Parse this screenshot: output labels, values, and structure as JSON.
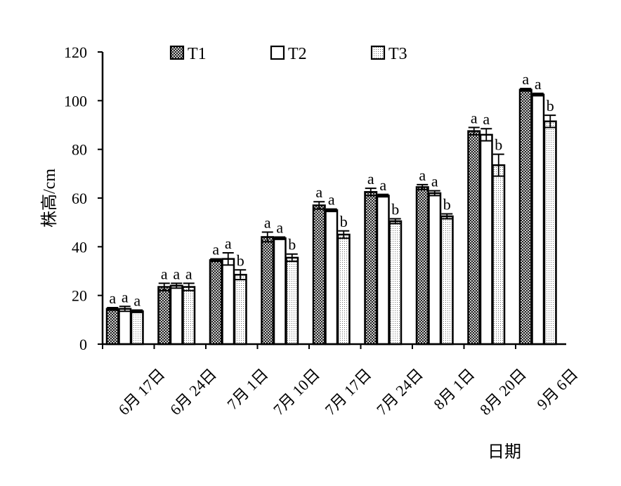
{
  "chart_data": {
    "type": "bar",
    "title": "",
    "xlabel": "日期",
    "ylabel": "株高/cm",
    "ylim": [
      0,
      120
    ],
    "yticks": [
      0,
      20,
      40,
      60,
      80,
      100,
      120
    ],
    "grid": false,
    "legend_position": "top",
    "categories": [
      "6月 17日",
      "6月 24日",
      "7月 1日",
      "7月 10日",
      "7月 17日",
      "7月 24日",
      "8月 1日",
      "8月 20日",
      "9月 6日"
    ],
    "series": [
      {
        "name": "T1",
        "pattern": "diagonal-cross-hatch",
        "values": [
          14.5,
          23.5,
          34.5,
          44,
          57,
          62.5,
          64.5,
          87.5,
          104.5
        ],
        "errors": [
          0.5,
          1.5,
          0.5,
          2,
          1.5,
          1.5,
          1,
          1.5,
          0.5
        ],
        "labels": [
          "a",
          "a",
          "a",
          "a",
          "a",
          "a",
          "a",
          "a",
          "a"
        ]
      },
      {
        "name": "T2",
        "pattern": "solid-white",
        "values": [
          14.5,
          24,
          35,
          43.5,
          55,
          61,
          62,
          86,
          102.5
        ],
        "errors": [
          1,
          1,
          2.5,
          0.5,
          0.5,
          0.5,
          1,
          2.5,
          0.5
        ],
        "labels": [
          "a",
          "a",
          "a",
          "a",
          "a",
          "a",
          "a",
          "a",
          "a"
        ]
      },
      {
        "name": "T3",
        "pattern": "dotted",
        "values": [
          13.5,
          23.5,
          28.5,
          35.5,
          45,
          50.5,
          52.5,
          73.5,
          91.5
        ],
        "errors": [
          0.5,
          1.5,
          2,
          1.5,
          1.5,
          1,
          1,
          4.5,
          2.5
        ],
        "labels": [
          "a",
          "a",
          "b",
          "b",
          "b",
          "b",
          "b",
          "b",
          "b"
        ]
      }
    ]
  }
}
